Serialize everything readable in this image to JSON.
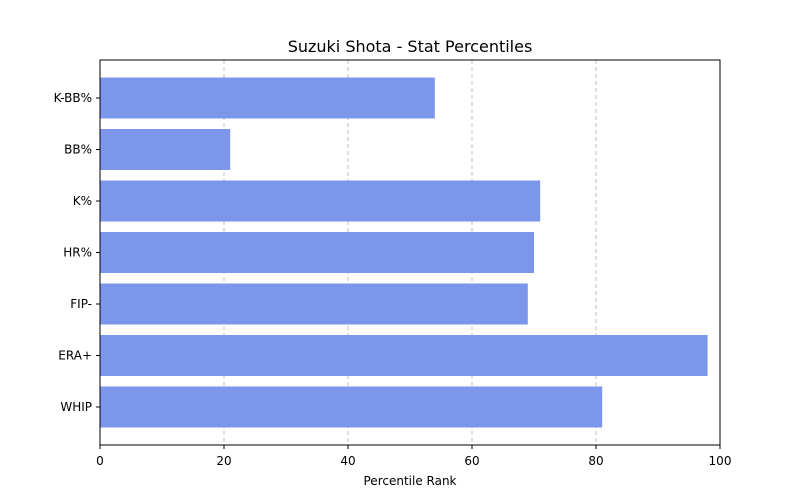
{
  "chart_data": {
    "type": "bar",
    "orientation": "horizontal",
    "title": "Suzuki Shota - Stat Percentiles",
    "xlabel": "Percentile Rank",
    "ylabel": "",
    "categories": [
      "K-BB%",
      "BB%",
      "K%",
      "HR%",
      "FIP-",
      "ERA+",
      "WHIP"
    ],
    "values": [
      54,
      21,
      71,
      70,
      69,
      98,
      81
    ],
    "xlim": [
      0,
      100
    ],
    "xticks": [
      0,
      20,
      40,
      60,
      80,
      100
    ],
    "grid": "x-dashed",
    "bar_color": "#7b96ea"
  }
}
